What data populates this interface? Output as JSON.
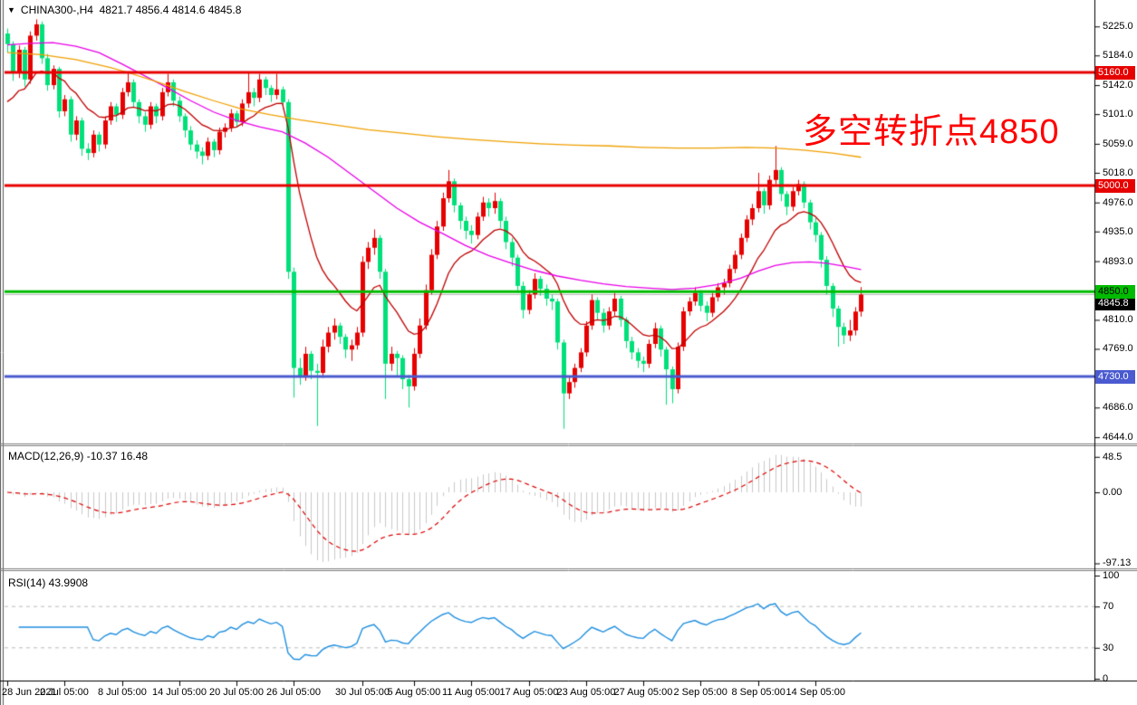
{
  "header": {
    "dropdown_icon": "▼",
    "symbol": "CHINA300-,H4",
    "ohlc_text": "4821.7 4856.4 4814.6 4845.8"
  },
  "annotation": {
    "text": "多空转折点4850",
    "color": "#FF0000"
  },
  "chart_data": {
    "type": "candlestick",
    "symbol": "CHINA300-",
    "timeframe": "H4",
    "last_bar": {
      "open": 4821.7,
      "high": 4856.4,
      "low": 4814.6,
      "close": 4845.8
    },
    "ylim": [
      4640,
      5235
    ],
    "up_color": "#E60000",
    "down_color": "#00E07A",
    "y_ticks": [
      "5225.0",
      "5184.0",
      "5142.0",
      "5101.0",
      "5059.0",
      "5018.0",
      "4976.0",
      "4935.0",
      "4893.0",
      "4810.0",
      "4769.0",
      "4686.0",
      "4644.0"
    ],
    "x_labels": [
      {
        "bar": 0,
        "label": "28 Jun 2021"
      },
      {
        "bar": 10,
        "label": "2 Jul 05:00"
      },
      {
        "bar": 20,
        "label": "8 Jul 05:00"
      },
      {
        "bar": 30,
        "label": "14 Jul 05:00"
      },
      {
        "bar": 40,
        "label": "20 Jul 05:00"
      },
      {
        "bar": 50,
        "label": "26 Jul 05:00"
      },
      {
        "bar": 62,
        "label": "30 Jul 05:00"
      },
      {
        "bar": 71,
        "label": "5 Aug 05:00"
      },
      {
        "bar": 81,
        "label": "11 Aug 05:00"
      },
      {
        "bar": 91,
        "label": "17 Aug 05:00"
      },
      {
        "bar": 101,
        "label": "23 Aug 05:00"
      },
      {
        "bar": 111,
        "label": "27 Aug 05:00"
      },
      {
        "bar": 121,
        "label": "2 Sep 05:00"
      },
      {
        "bar": 131,
        "label": "8 Sep 05:00"
      },
      {
        "bar": 141,
        "label": "14 Sep 05:00"
      }
    ],
    "hlines": [
      {
        "price": 5160.0,
        "label": "5160.0",
        "color": "#E60000",
        "text_color": "#FFFFFF"
      },
      {
        "price": 5000.0,
        "label": "5000.0",
        "color": "#E60000",
        "text_color": "#FFFFFF"
      },
      {
        "price": 4850.0,
        "label": "4850.0",
        "color": "#00BB00",
        "text_color": "#000000"
      },
      {
        "price": 4730.0,
        "label": "4730.0",
        "color": "#4A5AD0",
        "text_color": "#FFFFFF"
      }
    ],
    "current_price": {
      "value": 4845.8,
      "label": "4845.8",
      "line_color": "#B8B8B8",
      "bg": "#000000",
      "text_color": "#FFFFFF"
    },
    "moving_averages": [
      {
        "name": "fast-ma",
        "type": "ema",
        "period": 13,
        "seed": 5105,
        "color": "#C00000"
      },
      {
        "name": "medium-ma",
        "type": "points",
        "color": "#E800E8",
        "points": [
          [
            0,
            5199
          ],
          [
            4,
            5201
          ],
          [
            8,
            5202
          ],
          [
            12,
            5197
          ],
          [
            16,
            5188
          ],
          [
            20,
            5172
          ],
          [
            24,
            5155
          ],
          [
            28,
            5138
          ],
          [
            32,
            5120
          ],
          [
            36,
            5104
          ],
          [
            40,
            5092
          ],
          [
            44,
            5083
          ],
          [
            48,
            5076
          ],
          [
            52,
            5060
          ],
          [
            56,
            5040
          ],
          [
            60,
            5016
          ],
          [
            64,
            4992
          ],
          [
            68,
            4968
          ],
          [
            72,
            4948
          ],
          [
            76,
            4932
          ],
          [
            80,
            4915
          ],
          [
            84,
            4901
          ],
          [
            88,
            4890
          ],
          [
            92,
            4880
          ],
          [
            96,
            4872
          ],
          [
            100,
            4866
          ],
          [
            104,
            4861
          ],
          [
            108,
            4857
          ],
          [
            112,
            4855
          ],
          [
            116,
            4853
          ],
          [
            120,
            4855
          ],
          [
            124,
            4860
          ],
          [
            128,
            4869
          ],
          [
            131,
            4879
          ],
          [
            134,
            4887
          ],
          [
            137,
            4891
          ],
          [
            140,
            4892
          ],
          [
            143,
            4890
          ],
          [
            146,
            4886
          ],
          [
            149,
            4881
          ]
        ]
      },
      {
        "name": "slow-ma",
        "type": "points",
        "color": "#F0A000",
        "points": [
          [
            0,
            5188
          ],
          [
            6,
            5185
          ],
          [
            12,
            5178
          ],
          [
            18,
            5167
          ],
          [
            21,
            5160
          ],
          [
            26,
            5147
          ],
          [
            31,
            5133
          ],
          [
            36,
            5120
          ],
          [
            41,
            5108
          ],
          [
            46,
            5100
          ],
          [
            51,
            5093
          ],
          [
            57,
            5086
          ],
          [
            63,
            5079
          ],
          [
            69,
            5074
          ],
          [
            75,
            5069
          ],
          [
            81,
            5065
          ],
          [
            87,
            5062
          ],
          [
            93,
            5059
          ],
          [
            99,
            5057
          ],
          [
            105,
            5056
          ],
          [
            111,
            5054
          ],
          [
            117,
            5053
          ],
          [
            123,
            5053
          ],
          [
            129,
            5054
          ],
          [
            134,
            5053
          ],
          [
            139,
            5050
          ],
          [
            144,
            5046
          ],
          [
            149,
            5040
          ]
        ]
      }
    ],
    "ohlc": [
      [
        5215,
        5222,
        5188,
        5200
      ],
      [
        5200,
        5204,
        5148,
        5160
      ],
      [
        5160,
        5198,
        5152,
        5192
      ],
      [
        5192,
        5196,
        5140,
        5150
      ],
      [
        5150,
        5218,
        5144,
        5212
      ],
      [
        5212,
        5235,
        5205,
        5228
      ],
      [
        5228,
        5232,
        5172,
        5180
      ],
      [
        5180,
        5186,
        5134,
        5142
      ],
      [
        5142,
        5170,
        5136,
        5165
      ],
      [
        5165,
        5168,
        5096,
        5105
      ],
      [
        5105,
        5128,
        5098,
        5122
      ],
      [
        5122,
        5126,
        5062,
        5072
      ],
      [
        5072,
        5098,
        5064,
        5092
      ],
      [
        5092,
        5096,
        5042,
        5052
      ],
      [
        5052,
        5060,
        5036,
        5046
      ],
      [
        5046,
        5078,
        5040,
        5072
      ],
      [
        5072,
        5076,
        5048,
        5058
      ],
      [
        5058,
        5098,
        5052,
        5092
      ],
      [
        5092,
        5118,
        5086,
        5112
      ],
      [
        5112,
        5116,
        5090,
        5100
      ],
      [
        5100,
        5138,
        5094,
        5132
      ],
      [
        5132,
        5160,
        5126,
        5146
      ],
      [
        5146,
        5150,
        5110,
        5118
      ],
      [
        5118,
        5122,
        5088,
        5098
      ],
      [
        5098,
        5104,
        5076,
        5086
      ],
      [
        5086,
        5118,
        5080,
        5112
      ],
      [
        5112,
        5116,
        5088,
        5098
      ],
      [
        5098,
        5138,
        5092,
        5132
      ],
      [
        5132,
        5158,
        5126,
        5146
      ],
      [
        5146,
        5150,
        5112,
        5120
      ],
      [
        5120,
        5126,
        5090,
        5098
      ],
      [
        5098,
        5102,
        5068,
        5078
      ],
      [
        5078,
        5084,
        5050,
        5058
      ],
      [
        5058,
        5064,
        5038,
        5048
      ],
      [
        5048,
        5054,
        5030,
        5042
      ],
      [
        5042,
        5068,
        5036,
        5062
      ],
      [
        5062,
        5066,
        5040,
        5050
      ],
      [
        5050,
        5082,
        5044,
        5076
      ],
      [
        5076,
        5088,
        5068,
        5082
      ],
      [
        5082,
        5108,
        5076,
        5102
      ],
      [
        5102,
        5106,
        5082,
        5090
      ],
      [
        5090,
        5122,
        5084,
        5116
      ],
      [
        5116,
        5160,
        5110,
        5132
      ],
      [
        5132,
        5138,
        5112,
        5124
      ],
      [
        5124,
        5158,
        5118,
        5150
      ],
      [
        5150,
        5154,
        5128,
        5138
      ],
      [
        5138,
        5142,
        5118,
        5128
      ],
      [
        5128,
        5158,
        5122,
        5136
      ],
      [
        5136,
        5140,
        5108,
        5118
      ],
      [
        5118,
        5122,
        4868,
        4878
      ],
      [
        4878,
        4884,
        4700,
        4742
      ],
      [
        4742,
        4756,
        4718,
        4730
      ],
      [
        4730,
        4772,
        4724,
        4762
      ],
      [
        4762,
        4766,
        4726,
        4738
      ],
      [
        4738,
        4748,
        4660,
        4735
      ],
      [
        4735,
        4782,
        4728,
        4772
      ],
      [
        4772,
        4800,
        4764,
        4792
      ],
      [
        4792,
        4812,
        4782,
        4802
      ],
      [
        4802,
        4806,
        4776,
        4786
      ],
      [
        4786,
        4790,
        4756,
        4768
      ],
      [
        4768,
        4782,
        4752,
        4774
      ],
      [
        4774,
        4800,
        4768,
        4792
      ],
      [
        4792,
        4900,
        4786,
        4892
      ],
      [
        4892,
        4920,
        4882,
        4912
      ],
      [
        4912,
        4938,
        4902,
        4926
      ],
      [
        4926,
        4930,
        4868,
        4878
      ],
      [
        4878,
        4882,
        4698,
        4748
      ],
      [
        4748,
        4772,
        4738,
        4762
      ],
      [
        4762,
        4766,
        4730,
        4756
      ],
      [
        4756,
        4760,
        4712,
        4726
      ],
      [
        4726,
        4732,
        4686,
        4716
      ],
      [
        4716,
        4770,
        4710,
        4762
      ],
      [
        4762,
        4812,
        4756,
        4802
      ],
      [
        4802,
        4860,
        4796,
        4852
      ],
      [
        4852,
        4910,
        4846,
        4902
      ],
      [
        4902,
        4950,
        4896,
        4942
      ],
      [
        4942,
        4990,
        4936,
        4982
      ],
      [
        4982,
        5022,
        4976,
        5006
      ],
      [
        5006,
        5010,
        4962,
        4972
      ],
      [
        4972,
        4976,
        4938,
        4950
      ],
      [
        4950,
        4956,
        4924,
        4936
      ],
      [
        4936,
        4944,
        4918,
        4930
      ],
      [
        4930,
        4962,
        4924,
        4956
      ],
      [
        4956,
        4984,
        4950,
        4976
      ],
      [
        4976,
        4982,
        4956,
        4968
      ],
      [
        4968,
        4990,
        4960,
        4978
      ],
      [
        4978,
        4982,
        4940,
        4950
      ],
      [
        4950,
        4956,
        4910,
        4920
      ],
      [
        4920,
        4926,
        4886,
        4898
      ],
      [
        4898,
        4902,
        4848,
        4858
      ],
      [
        4858,
        4864,
        4812,
        4824
      ],
      [
        4824,
        4852,
        4818,
        4846
      ],
      [
        4846,
        4876,
        4840,
        4868
      ],
      [
        4868,
        4872,
        4844,
        4854
      ],
      [
        4854,
        4860,
        4830,
        4840
      ],
      [
        4840,
        4846,
        4824,
        4836
      ],
      [
        4836,
        4840,
        4768,
        4778
      ],
      [
        4778,
        4782,
        4656,
        4706
      ],
      [
        4706,
        4730,
        4698,
        4722
      ],
      [
        4722,
        4748,
        4714,
        4742
      ],
      [
        4742,
        4770,
        4736,
        4764
      ],
      [
        4764,
        4808,
        4758,
        4802
      ],
      [
        4802,
        4846,
        4796,
        4838
      ],
      [
        4838,
        4842,
        4810,
        4820
      ],
      [
        4820,
        4826,
        4792,
        4802
      ],
      [
        4802,
        4828,
        4796,
        4822
      ],
      [
        4822,
        4848,
        4816,
        4840
      ],
      [
        4840,
        4844,
        4800,
        4810
      ],
      [
        4810,
        4814,
        4770,
        4780
      ],
      [
        4780,
        4786,
        4754,
        4764
      ],
      [
        4764,
        4770,
        4742,
        4752
      ],
      [
        4752,
        4758,
        4736,
        4748
      ],
      [
        4748,
        4782,
        4742,
        4776
      ],
      [
        4776,
        4806,
        4770,
        4798
      ],
      [
        4798,
        4802,
        4758,
        4768
      ],
      [
        4768,
        4772,
        4690,
        4740
      ],
      [
        4740,
        4744,
        4692,
        4712
      ],
      [
        4712,
        4778,
        4706,
        4772
      ],
      [
        4772,
        4828,
        4766,
        4822
      ],
      [
        4822,
        4842,
        4816,
        4836
      ],
      [
        4836,
        4856,
        4830,
        4848
      ],
      [
        4848,
        4852,
        4822,
        4830
      ],
      [
        4830,
        4836,
        4808,
        4820
      ],
      [
        4820,
        4848,
        4814,
        4842
      ],
      [
        4842,
        4862,
        4836,
        4856
      ],
      [
        4856,
        4868,
        4846,
        4862
      ],
      [
        4862,
        4888,
        4856,
        4882
      ],
      [
        4882,
        4908,
        4876,
        4902
      ],
      [
        4902,
        4932,
        4896,
        4926
      ],
      [
        4926,
        4958,
        4920,
        4952
      ],
      [
        4952,
        4974,
        4944,
        4968
      ],
      [
        4968,
        5018,
        4962,
        4992
      ],
      [
        4992,
        4996,
        4960,
        4972
      ],
      [
        4972,
        5014,
        4966,
        5008
      ],
      [
        5008,
        5056,
        5002,
        5022
      ],
      [
        5022,
        5026,
        4978,
        4988
      ],
      [
        4988,
        4992,
        4958,
        4970
      ],
      [
        4970,
        4998,
        4964,
        4992
      ],
      [
        4992,
        5008,
        4986,
        5002
      ],
      [
        5002,
        5006,
        4968,
        4976
      ],
      [
        4976,
        4980,
        4938,
        4948
      ],
      [
        4948,
        4954,
        4920,
        4930
      ],
      [
        4930,
        4934,
        4884,
        4895
      ],
      [
        4895,
        4900,
        4846,
        4858
      ],
      [
        4858,
        4862,
        4814,
        4826
      ],
      [
        4826,
        4830,
        4772,
        4800
      ],
      [
        4800,
        4806,
        4776,
        4788
      ],
      [
        4788,
        4810,
        4780,
        4795
      ],
      [
        4795,
        4828,
        4788,
        4821.7
      ],
      [
        4821.7,
        4856.4,
        4814.6,
        4845.8
      ]
    ],
    "macd": {
      "label": "MACD(12,26,9) -10.37 16.48",
      "fast": 12,
      "slow": 26,
      "signal": 9,
      "current_main": -10.37,
      "current_signal": 16.48,
      "y_ticks": [
        "48.5",
        "0.00",
        "-97.13"
      ],
      "hist_color": "#C9C9C9",
      "signal_color": "#DD0000"
    },
    "rsi": {
      "label": "RSI(14) 43.9908",
      "period": 14,
      "current": 43.9908,
      "color": "#1E8FE0",
      "levels": [
        70,
        30
      ],
      "y_ticks": [
        "100",
        "70",
        "30",
        "0"
      ]
    }
  }
}
